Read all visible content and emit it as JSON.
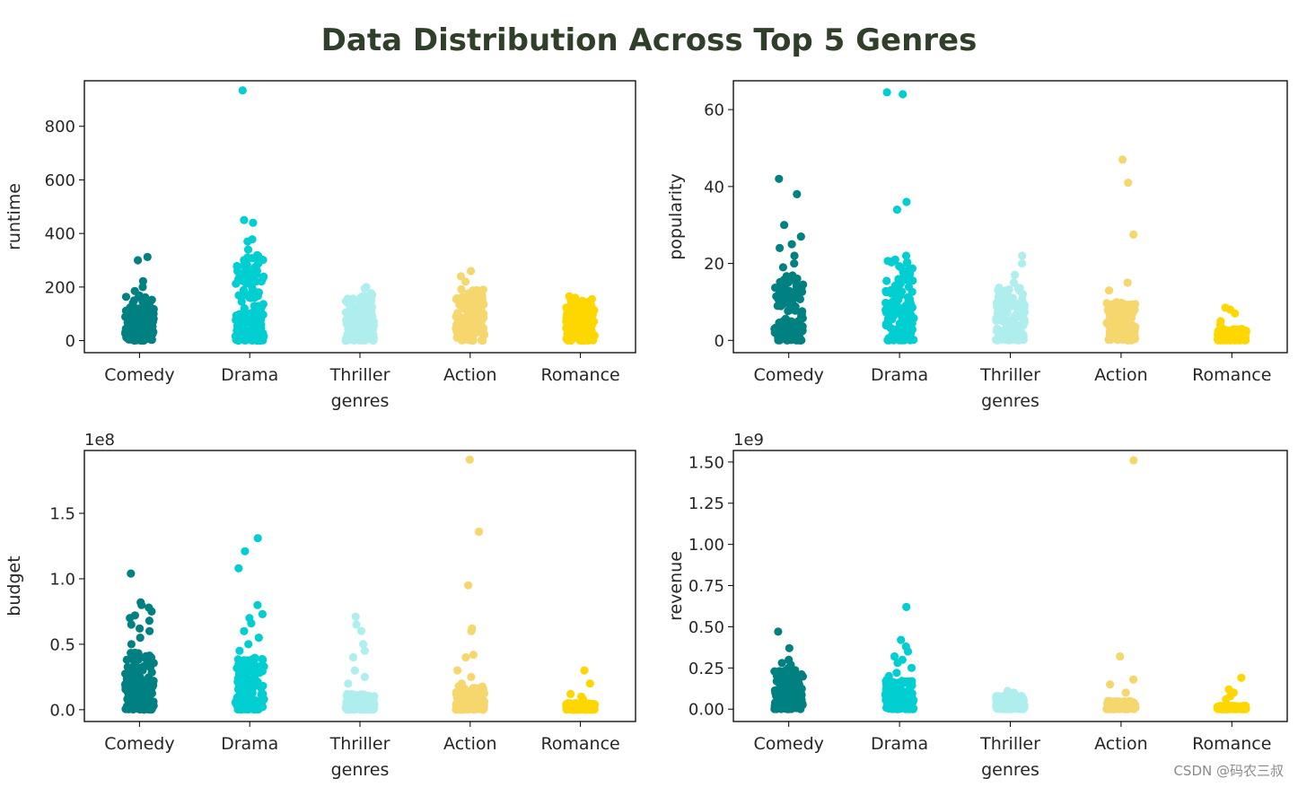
{
  "title": "Data Distribution Across Top 5 Genres",
  "watermark": "CSDN @码农三叔",
  "colors": {
    "title": "#2f3f2a",
    "Comedy": "#008080",
    "Drama": "#00CED1",
    "Thriller": "#AFEEEE",
    "Action": "#F5D76E",
    "Romance": "#FFD700"
  },
  "chart_data": [
    {
      "type": "scatter",
      "variant": "strip",
      "panel": "top-left",
      "categories": [
        "Comedy",
        "Drama",
        "Thriller",
        "Action",
        "Romance"
      ],
      "xlabel": "genres",
      "ylabel": "runtime",
      "offset_label": "",
      "ylim": [
        -45,
        970
      ],
      "yticks": [
        0,
        200,
        400,
        600,
        800
      ],
      "ytick_labels": [
        "0",
        "200",
        "400",
        "600",
        "800"
      ],
      "dense": [
        [
          0,
          170
        ],
        [
          0,
          320
        ],
        [
          0,
          180
        ],
        [
          0,
          200
        ],
        [
          0,
          150
        ]
      ],
      "outliers": [
        {
          "values": [
            312,
            300,
            222,
            200,
            185
          ]
        },
        {
          "values": [
            934,
            450,
            440,
            378,
            370,
            340,
            310,
            280
          ]
        },
        {
          "values": [
            200,
            195
          ]
        },
        {
          "values": [
            260,
            240,
            220
          ]
        },
        {
          "values": [
            165,
            160,
            155
          ]
        }
      ]
    },
    {
      "type": "scatter",
      "variant": "strip",
      "panel": "top-right",
      "categories": [
        "Comedy",
        "Drama",
        "Thriller",
        "Action",
        "Romance"
      ],
      "xlabel": "genres",
      "ylabel": "popularity",
      "offset_label": "",
      "ylim": [
        -3.2,
        67.5
      ],
      "yticks": [
        0,
        20,
        40,
        60
      ],
      "ytick_labels": [
        "0",
        "20",
        "40",
        "60"
      ],
      "dense": [
        [
          0,
          17
        ],
        [
          0,
          21
        ],
        [
          0,
          14
        ],
        [
          0,
          10
        ],
        [
          0,
          3
        ]
      ],
      "outliers": [
        {
          "values": [
            42,
            38,
            30,
            27,
            25,
            24,
            22,
            20,
            19
          ]
        },
        {
          "values": [
            64.5,
            64,
            36,
            34,
            22,
            21
          ]
        },
        {
          "values": [
            22,
            20,
            17,
            15
          ]
        },
        {
          "values": [
            47,
            41,
            27.5,
            15,
            13
          ]
        },
        {
          "values": [
            8.5,
            8,
            7,
            5,
            4
          ]
        }
      ]
    },
    {
      "type": "scatter",
      "variant": "strip",
      "panel": "bottom-left",
      "categories": [
        "Comedy",
        "Drama",
        "Thriller",
        "Action",
        "Romance"
      ],
      "xlabel": "genres",
      "ylabel": "budget",
      "offset_label": "1e8",
      "ylim": [
        -0.09,
        1.98
      ],
      "yticks": [
        0,
        0.5,
        1.0,
        1.5
      ],
      "ytick_labels": [
        "0.0",
        "0.5",
        "1.0",
        "1.5"
      ],
      "dense": [
        [
          0,
          0.45
        ],
        [
          0,
          0.4
        ],
        [
          0,
          0.12
        ],
        [
          0,
          0.18
        ],
        [
          0,
          0.05
        ]
      ],
      "outliers": [
        {
          "values": [
            1.04,
            0.82,
            0.8,
            0.78,
            0.75,
            0.72,
            0.7,
            0.68,
            0.65,
            0.62,
            0.6,
            0.55,
            0.5
          ]
        },
        {
          "values": [
            1.31,
            1.21,
            1.08,
            0.8,
            0.73,
            0.7,
            0.66,
            0.6,
            0.55,
            0.5,
            0.45
          ]
        },
        {
          "values": [
            0.71,
            0.65,
            0.6,
            0.5,
            0.45,
            0.4,
            0.3,
            0.25,
            0.2
          ]
        },
        {
          "values": [
            1.91,
            1.36,
            0.95,
            0.62,
            0.6,
            0.42,
            0.4,
            0.3,
            0.25,
            0.2
          ]
        },
        {
          "values": [
            0.3,
            0.2,
            0.12,
            0.1,
            0.08
          ]
        }
      ]
    },
    {
      "type": "scatter",
      "variant": "strip",
      "panel": "bottom-right",
      "categories": [
        "Comedy",
        "Drama",
        "Thriller",
        "Action",
        "Romance"
      ],
      "xlabel": "genres",
      "ylabel": "revenue",
      "offset_label": "1e9",
      "ylim": [
        -0.075,
        1.57
      ],
      "yticks": [
        0,
        0.25,
        0.5,
        0.75,
        1.0,
        1.25,
        1.5
      ],
      "ytick_labels": [
        "0.00",
        "0.25",
        "0.50",
        "0.75",
        "1.00",
        "1.25",
        "1.50"
      ],
      "dense": [
        [
          0,
          0.25
        ],
        [
          0,
          0.18
        ],
        [
          0,
          0.08
        ],
        [
          0,
          0.05
        ],
        [
          0,
          0.02
        ]
      ],
      "outliers": [
        {
          "values": [
            0.47,
            0.37,
            0.3,
            0.28,
            0.27
          ]
        },
        {
          "values": [
            0.62,
            0.42,
            0.38,
            0.35,
            0.32,
            0.3,
            0.28,
            0.25,
            0.22,
            0.2
          ]
        },
        {
          "values": [
            0.11,
            0.1,
            0.09
          ]
        },
        {
          "values": [
            1.51,
            0.32,
            0.18,
            0.15,
            0.1
          ]
        },
        {
          "values": [
            0.19,
            0.12,
            0.1,
            0.08,
            0.06
          ]
        }
      ]
    }
  ]
}
